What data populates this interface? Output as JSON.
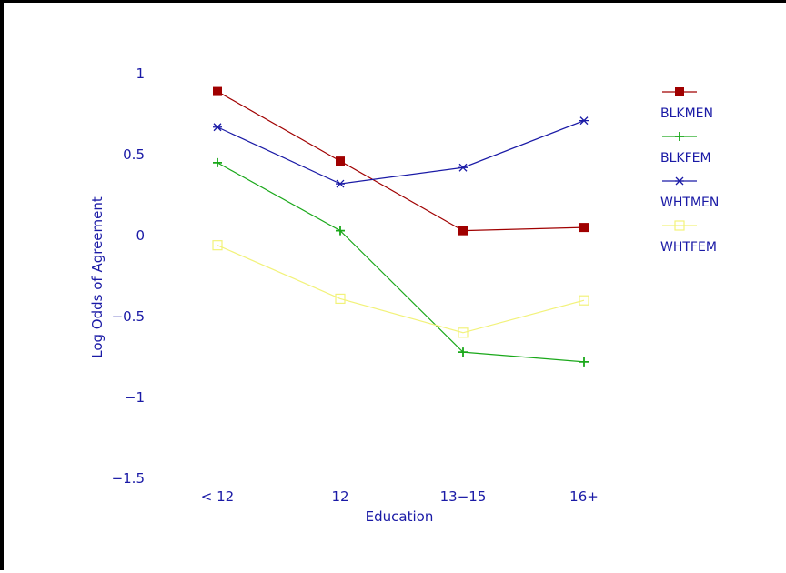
{
  "chart_data": {
    "type": "line",
    "title": "",
    "xlabel": "Education",
    "ylabel": "Log Odds of Agreement",
    "categories": [
      "< 12",
      "12",
      "13−15",
      "16+"
    ],
    "yticks": [
      "1",
      "0.5",
      "0",
      "−0.5",
      "−1",
      "−1.5"
    ],
    "ytick_values": [
      1,
      0.5,
      0,
      -0.5,
      -1,
      -1.5
    ],
    "ylim": [
      -1.5,
      1
    ],
    "grid": false,
    "legend_position": "right",
    "text_color": "#1a1aa6",
    "series": [
      {
        "name": "BLKMEN",
        "values": [
          0.89,
          0.46,
          0.03,
          0.05
        ],
        "color": "#a00000",
        "marker": "filled-square"
      },
      {
        "name": "BLKFEM",
        "values": [
          0.45,
          0.03,
          -0.72,
          -0.78
        ],
        "color": "#1aa81a",
        "marker": "plus"
      },
      {
        "name": "WHTMEN",
        "values": [
          0.67,
          0.32,
          0.42,
          0.71
        ],
        "color": "#1a1aa6",
        "marker": "star"
      },
      {
        "name": "WHTFEM",
        "values": [
          -0.06,
          -0.39,
          -0.6,
          -0.4
        ],
        "color": "#f2f27a",
        "marker": "open-square"
      }
    ]
  }
}
